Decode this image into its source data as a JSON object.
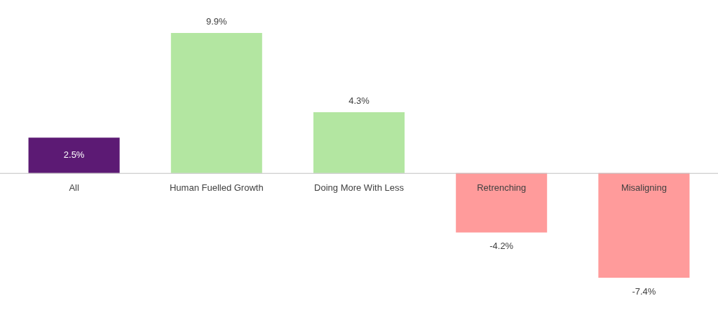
{
  "chart_data": {
    "type": "bar",
    "categories": [
      "All",
      "Human Fuelled Growth",
      "Doing More With Less",
      "Retrenching",
      "Misaligning"
    ],
    "values": [
      2.5,
      9.9,
      4.3,
      -4.2,
      -7.4
    ],
    "colors": [
      "#5c1a74",
      "#b3e6a1",
      "#b3e6a1",
      "#ff9b9b",
      "#ff9b9b"
    ],
    "value_labels": [
      "2.5%",
      "9.9%",
      "4.3%",
      "-4.2%",
      "-7.4%"
    ]
  }
}
